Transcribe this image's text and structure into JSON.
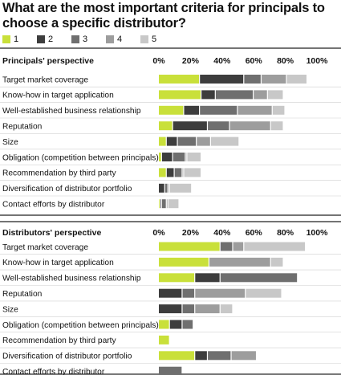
{
  "title": "What are the most important criteria for principals to choose a specific distributor?",
  "legend": [
    {
      "label": "1",
      "color": "#c9e03a"
    },
    {
      "label": "2",
      "color": "#3d3d3d"
    },
    {
      "label": "3",
      "color": "#6f6f6f"
    },
    {
      "label": "4",
      "color": "#9d9d9d"
    },
    {
      "label": "5",
      "color": "#c8c8c8"
    }
  ],
  "chart_data": [
    {
      "type": "bar",
      "stacked": true,
      "orientation": "horizontal",
      "title": "Principals' perspective",
      "xlim": [
        0,
        100
      ],
      "xticks": [
        "0%",
        "20%",
        "40%",
        "60%",
        "80%",
        "100%"
      ],
      "grid": false,
      "categories": [
        "Target market coverage",
        "Know-how in target application",
        "Well-established business relationship",
        "Reputation",
        "Size",
        "Obligation (competition between principals)",
        "Recommendation by third party",
        "Diversification of distributor portfolio",
        "Contact efforts by distributor"
      ],
      "series": [
        {
          "name": "1",
          "values": [
            26,
            27,
            16,
            9,
            5,
            2,
            5,
            0,
            1
          ]
        },
        {
          "name": "2",
          "values": [
            28,
            9,
            10,
            22,
            7,
            7,
            5,
            4,
            1
          ]
        },
        {
          "name": "3",
          "values": [
            11,
            24,
            24,
            14,
            12,
            8,
            5,
            2,
            3
          ]
        },
        {
          "name": "4",
          "values": [
            16,
            9,
            22,
            26,
            9,
            1,
            1,
            1,
            1
          ]
        },
        {
          "name": "5",
          "values": [
            13,
            10,
            8,
            8,
            18,
            9,
            11,
            14,
            7
          ]
        }
      ]
    },
    {
      "type": "bar",
      "stacked": true,
      "orientation": "horizontal",
      "title": "Distributors' perspective",
      "xlim": [
        0,
        100
      ],
      "xticks": [
        "0%",
        "20%",
        "40%",
        "60%",
        "80%",
        "100%"
      ],
      "grid": false,
      "categories": [
        "Target market coverage",
        "Know-how in target application",
        "Well-established business relationship",
        "Reputation",
        "Size",
        "Obligation (competition between principals)",
        "Recommendation by third party",
        "Diversification of distributor portfolio",
        "Contact efforts by distributor"
      ],
      "series": [
        {
          "name": "1",
          "values": [
            39,
            32,
            23,
            0,
            0,
            7,
            7,
            23,
            0
          ]
        },
        {
          "name": "2",
          "values": [
            0,
            0,
            16,
            15,
            15,
            8,
            0,
            8,
            0
          ]
        },
        {
          "name": "3",
          "values": [
            8,
            0,
            49,
            8,
            8,
            7,
            0,
            15,
            15
          ]
        },
        {
          "name": "4",
          "values": [
            7,
            39,
            0,
            32,
            16,
            0,
            0,
            16,
            0
          ]
        },
        {
          "name": "5",
          "values": [
            39,
            8,
            0,
            23,
            8,
            0,
            0,
            0,
            0
          ]
        }
      ]
    }
  ]
}
